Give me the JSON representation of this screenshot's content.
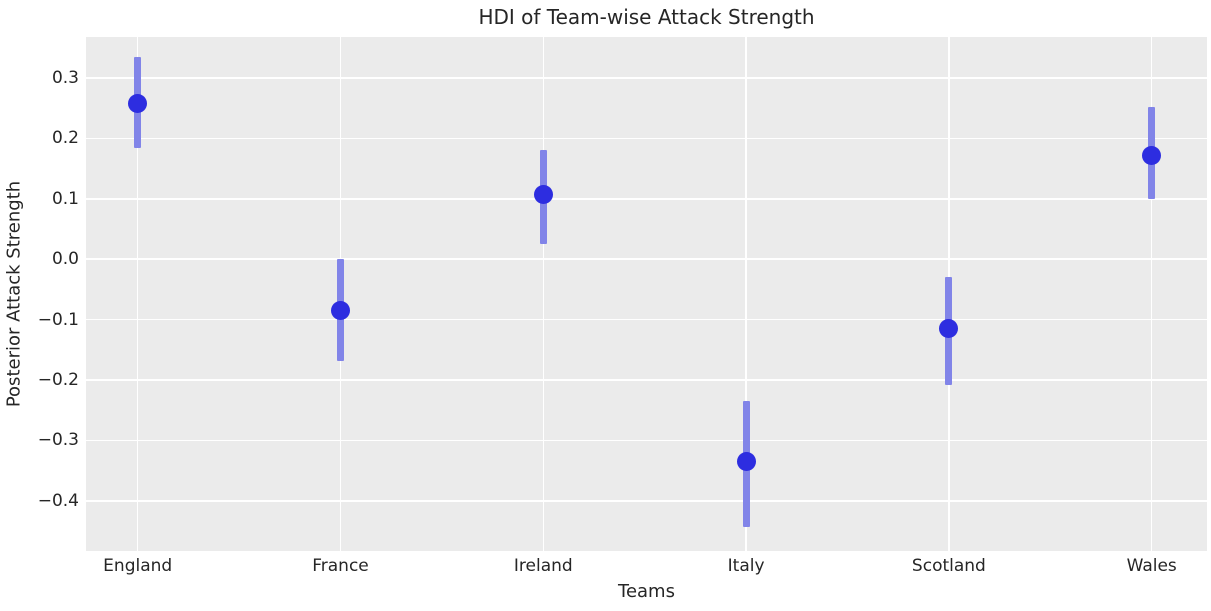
{
  "chart_data": {
    "type": "scatter",
    "subtype": "errorbar-hdi",
    "title": "HDI of Team-wise Attack Strength",
    "xlabel": "Teams",
    "ylabel": "Posterior Attack Strength",
    "categories": [
      "England",
      "France",
      "Ireland",
      "Italy",
      "Scotland",
      "Wales"
    ],
    "points": [
      {
        "team": "England",
        "mean": 0.258,
        "hdi_low": 0.185,
        "hdi_high": 0.335
      },
      {
        "team": "France",
        "mean": -0.085,
        "hdi_low": -0.168,
        "hdi_high": 0.0
      },
      {
        "team": "Ireland",
        "mean": 0.108,
        "hdi_low": 0.025,
        "hdi_high": 0.181
      },
      {
        "team": "Italy",
        "mean": -0.335,
        "hdi_low": -0.443,
        "hdi_high": -0.235
      },
      {
        "team": "Scotland",
        "mean": -0.115,
        "hdi_low": -0.208,
        "hdi_high": -0.03
      },
      {
        "team": "Wales",
        "mean": 0.172,
        "hdi_low": 0.1,
        "hdi_high": 0.252
      }
    ],
    "yticks": [
      {
        "value": 0.3,
        "label": "0.3"
      },
      {
        "value": 0.2,
        "label": "0.2"
      },
      {
        "value": 0.1,
        "label": "0.1"
      },
      {
        "value": 0.0,
        "label": "0.0"
      },
      {
        "value": -0.1,
        "label": "−0.1"
      },
      {
        "value": -0.2,
        "label": "−0.2"
      },
      {
        "value": -0.3,
        "label": "−0.3"
      },
      {
        "value": -0.4,
        "label": "−0.4"
      }
    ],
    "ylim": [
      -0.483,
      0.368
    ],
    "grid": true,
    "legend_position": "none",
    "colors": {
      "mean_point": "#2d2de0",
      "hdi_interval": "#8184e8",
      "plot_background": "#ebebeb",
      "gridline": "#ffffff",
      "text": "#262626",
      "figure_background": "#ffffff"
    }
  }
}
